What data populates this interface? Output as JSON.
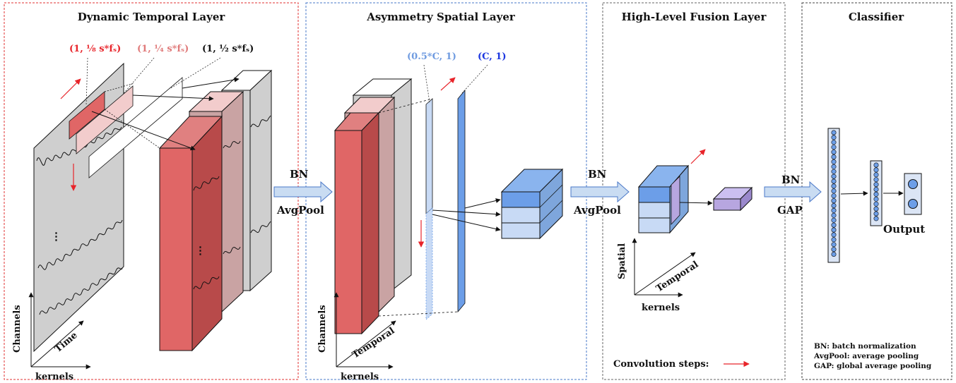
{
  "sections": {
    "temporal": "Dynamic Temporal Layer",
    "spatial": "Asymmetry Spatial Layer",
    "fusion": "High-Level Fusion Layer",
    "classifier": "Classifier"
  },
  "kernel_labels": {
    "k1": "(1, ⅛ s*fₛ)",
    "k2": "(1, ¼ s*fₛ)",
    "k3": "(1, ½ s*fₛ)",
    "s1": "(0.5*C, 1)",
    "s2": "(C, 1)"
  },
  "transitions": {
    "t1_top": "BN",
    "t1_bottom": "AvgPool",
    "t2_top": "BN",
    "t2_bottom": "AvgPool",
    "t3_top": "BN",
    "t3_bottom": "GAP"
  },
  "axes": {
    "channels": "Channels",
    "time": "Time",
    "kernels": "kernels",
    "temporal": "Temporal",
    "spatial": "Spatial",
    "ellipsis": "⋮"
  },
  "output_label": "Output",
  "legend": {
    "bn": "BN: batch normalization",
    "avgpool": "AvgPool: average pooling",
    "gap": "GAP: global average pooling",
    "steps": "Convolution steps:"
  },
  "colors": {
    "red_border": "#e03030",
    "blue_border": "#4a78c8",
    "gray_border": "#666666",
    "red_block": "#e06666",
    "dark_red_block": "#b84a4a",
    "pink_block": "#f2cccc",
    "gray_block": "#d0d0d0",
    "blue_block": "#6c9ee8",
    "light_blue_block": "#c8daf5",
    "purple_block": "#b7a6e0",
    "arrow_fill": "#c9dcf2",
    "red_arrow": "#e8242a"
  }
}
